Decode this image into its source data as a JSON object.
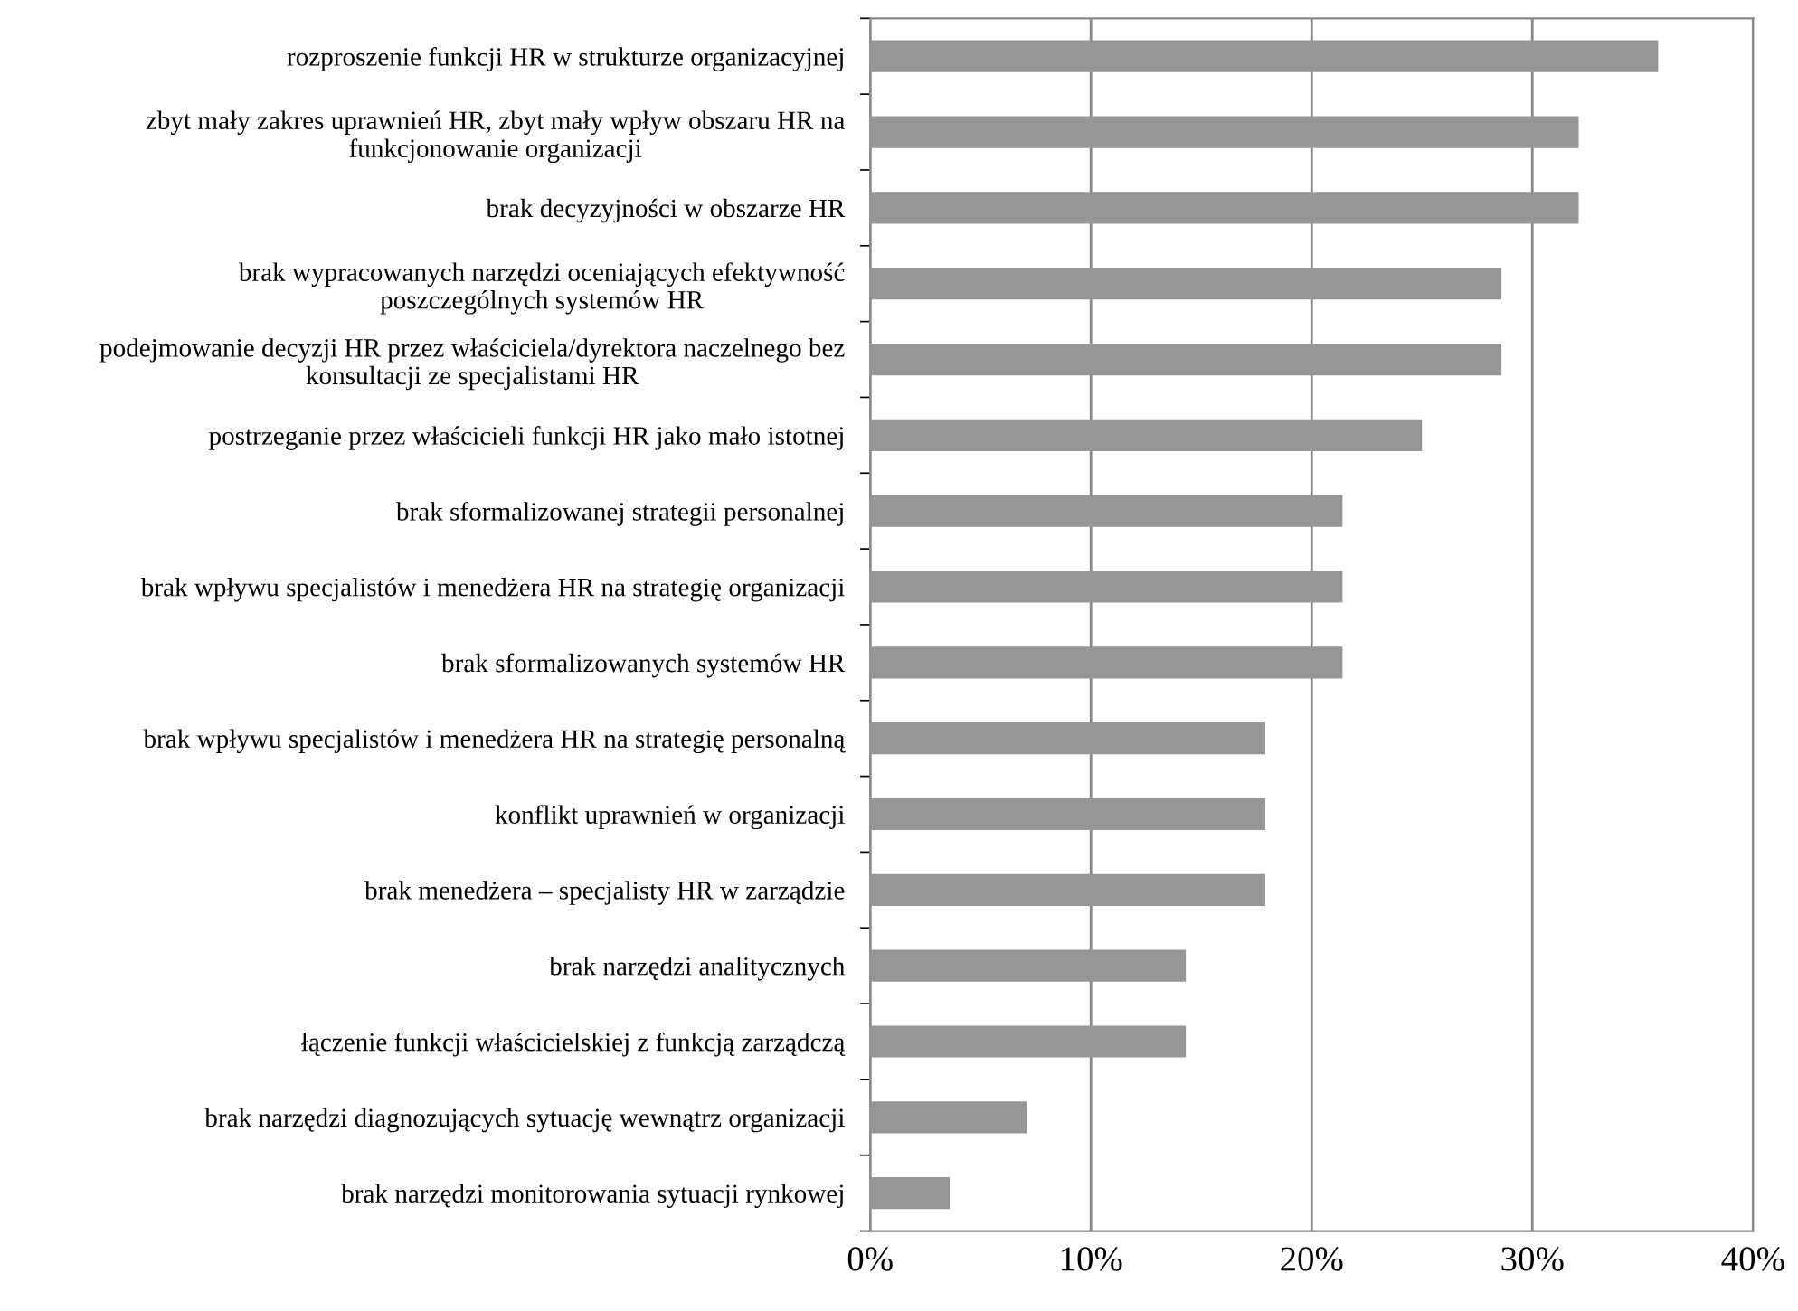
{
  "chart_data": {
    "type": "bar",
    "orientation": "horizontal",
    "categories": [
      "rozproszenie funkcji HR w strukturze organizacyjnej",
      "zbyt mały zakres uprawnień HR, zbyt mały wpływ obszaru HR na\nfunkcjonowanie organizacji",
      "brak decyzyjności w obszarze HR",
      "brak wypracowanych narzędzi oceniających efektywność\nposzczególnych systemów HR",
      "podejmowanie decyzji HR przez właściciela/dyrektora naczelnego bez\nkonsultacji ze specjalistami HR",
      "postrzeganie przez właścicieli funkcji HR jako mało istotnej",
      "brak sformalizowanej strategii personalnej",
      "brak wpływu specjalistów i menedżera HR na strategię organizacji",
      "brak sformalizowanych systemów HR",
      "brak wpływu specjalistów i menedżera HR na strategię personalną",
      "konflikt uprawnień w organizacji",
      "brak menedżera – specjalisty HR w zarządzie",
      "brak narzędzi analitycznych",
      "łączenie funkcji właścicielskiej z funkcją zarządczą",
      "brak narzędzi diagnozujących sytuację wewnątrz organizacji",
      "brak narzędzi monitorowania sytuacji rynkowej"
    ],
    "values": [
      35.7,
      32.1,
      32.1,
      28.6,
      28.6,
      25,
      21.4,
      21.4,
      21.4,
      17.9,
      17.9,
      17.9,
      14.3,
      14.3,
      7.1,
      3.6
    ],
    "color": "#969696",
    "xlim": [
      0,
      40
    ],
    "xticks": [
      {
        "value": 0,
        "label": "0%"
      },
      {
        "value": 10,
        "label": "10%"
      },
      {
        "value": 20,
        "label": "20%"
      },
      {
        "value": 30,
        "label": "30%"
      },
      {
        "value": 40,
        "label": "40%"
      }
    ],
    "grid": "x"
  }
}
